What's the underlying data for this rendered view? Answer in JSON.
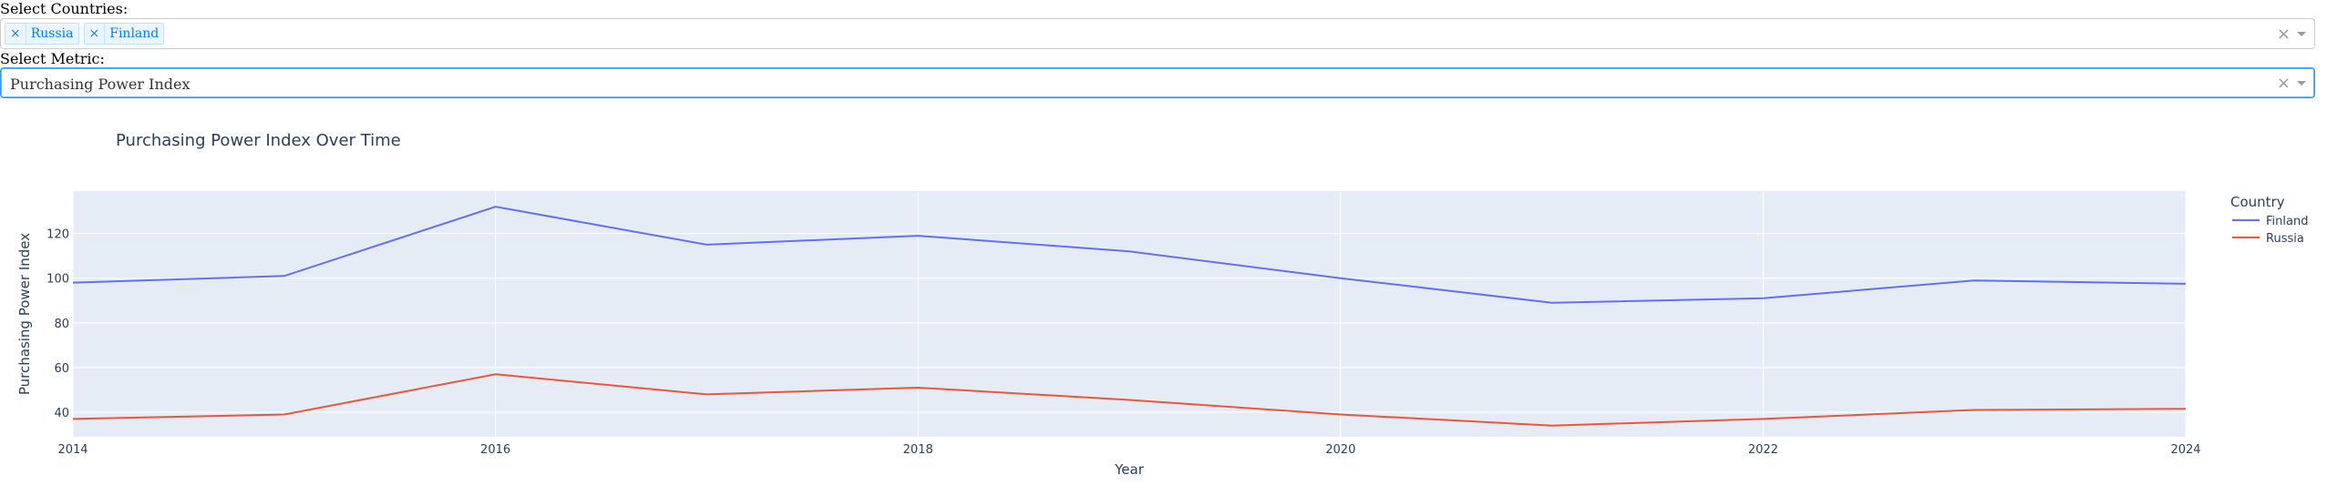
{
  "filters": {
    "countries_label": "Select Countries:",
    "selected_countries": [
      "Russia",
      "Finland"
    ],
    "metric_label": "Select Metric:",
    "selected_metric": "Purchasing Power Index",
    "remove_glyph": "×",
    "clear_glyph": "×"
  },
  "chart_data": {
    "type": "line",
    "title": "Purchasing Power Index Over Time",
    "xlabel": "Year",
    "ylabel": "Purchasing Power Index",
    "xlim": [
      2014,
      2024
    ],
    "ylim": [
      29,
      139
    ],
    "x_ticks": [
      2014,
      2016,
      2018,
      2020,
      2022,
      2024
    ],
    "y_ticks": [
      40,
      60,
      80,
      100,
      120
    ],
    "grid": true,
    "legend": {
      "title": "Country",
      "placement": "right"
    },
    "x": [
      2014,
      2015,
      2016,
      2017,
      2018,
      2019,
      2020,
      2021,
      2022,
      2023,
      2024
    ],
    "series": [
      {
        "name": "Finland",
        "color": "#636efa",
        "values": [
          98,
          101,
          132,
          115,
          119,
          112,
          100,
          89,
          91,
          99,
          97.5
        ]
      },
      {
        "name": "Russia",
        "color": "#ef553b",
        "values": [
          37,
          39,
          57,
          48,
          51,
          45.5,
          39,
          34,
          37,
          41,
          41.5
        ]
      }
    ]
  }
}
